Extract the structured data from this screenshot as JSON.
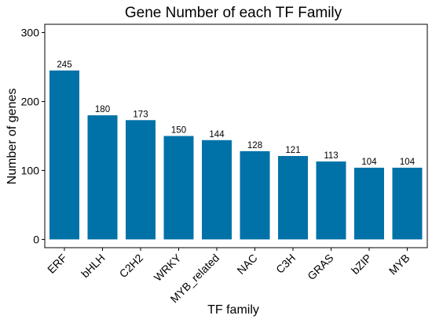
{
  "chart_data": {
    "type": "bar",
    "title": "Gene Number of each TF Family",
    "xlabel": "TF family",
    "ylabel": "Number of genes",
    "categories": [
      "ERF",
      "bHLH",
      "C2H2",
      "WRKY",
      "MYB_related",
      "NAC",
      "C3H",
      "GRAS",
      "bZIP",
      "MYB"
    ],
    "values": [
      245,
      180,
      173,
      150,
      144,
      128,
      121,
      113,
      104,
      104
    ],
    "data_labels": [
      "245",
      "180",
      "173",
      "150",
      "144",
      "128",
      "121",
      "113",
      "104",
      "104"
    ],
    "yticks": [
      0,
      100,
      200,
      300
    ],
    "ytick_labels": [
      "0",
      "100",
      "200",
      "300"
    ],
    "ylim": [
      -12,
      312
    ],
    "grid": false,
    "legend": "none",
    "bar_color": "#0072A8"
  }
}
